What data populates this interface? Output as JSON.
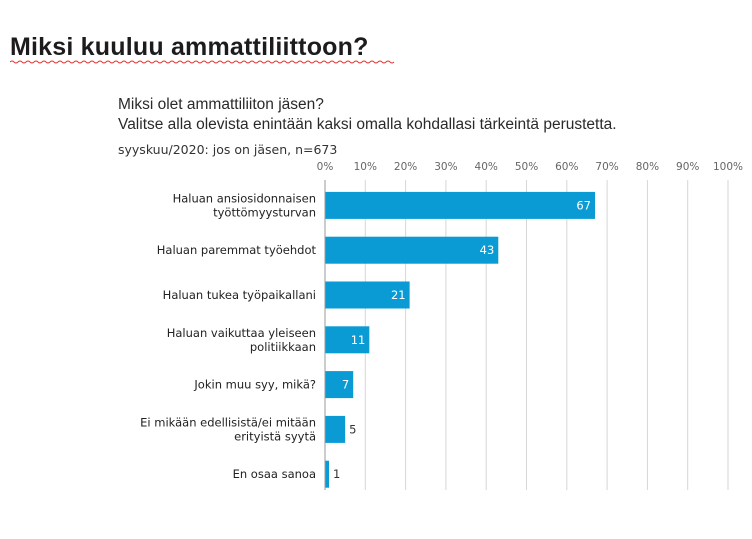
{
  "page": {
    "title": "Miksi kuuluu ammattiliittoon?"
  },
  "chart_data": {
    "type": "bar",
    "orientation": "horizontal",
    "title_line1": "Miksi olet ammattiliiton jäsen?",
    "title_line2": "Valitse alla olevista enintään kaksi omalla kohdallasi tärkeintä perustetta.",
    "subtitle": "syyskuu/2020: jos on jäsen, n=673",
    "categories": [
      [
        "Haluan ansiosidonnaisen",
        "työttömyysturvan"
      ],
      [
        "Haluan paremmat työehdot"
      ],
      [
        "Haluan tukea työpaikallani"
      ],
      [
        "Haluan vaikuttaa yleiseen",
        "politiikkaan"
      ],
      [
        "Jokin muu syy, mikä?"
      ],
      [
        "Ei mikään edellisistä/ei mitään",
        "erityistä syytä"
      ],
      [
        "En osaa sanoa"
      ]
    ],
    "values": [
      67,
      43,
      21,
      11,
      7,
      5,
      1
    ],
    "xlim": [
      0,
      100
    ],
    "xticks": [
      "0%",
      "10%",
      "20%",
      "30%",
      "40%",
      "50%",
      "60%",
      "70%",
      "80%",
      "90%",
      "100%"
    ],
    "bar_color": "#0a9bd4",
    "value_label_color_inside": "#ffffff",
    "value_label_color_outside": "#333333",
    "grid": true
  }
}
